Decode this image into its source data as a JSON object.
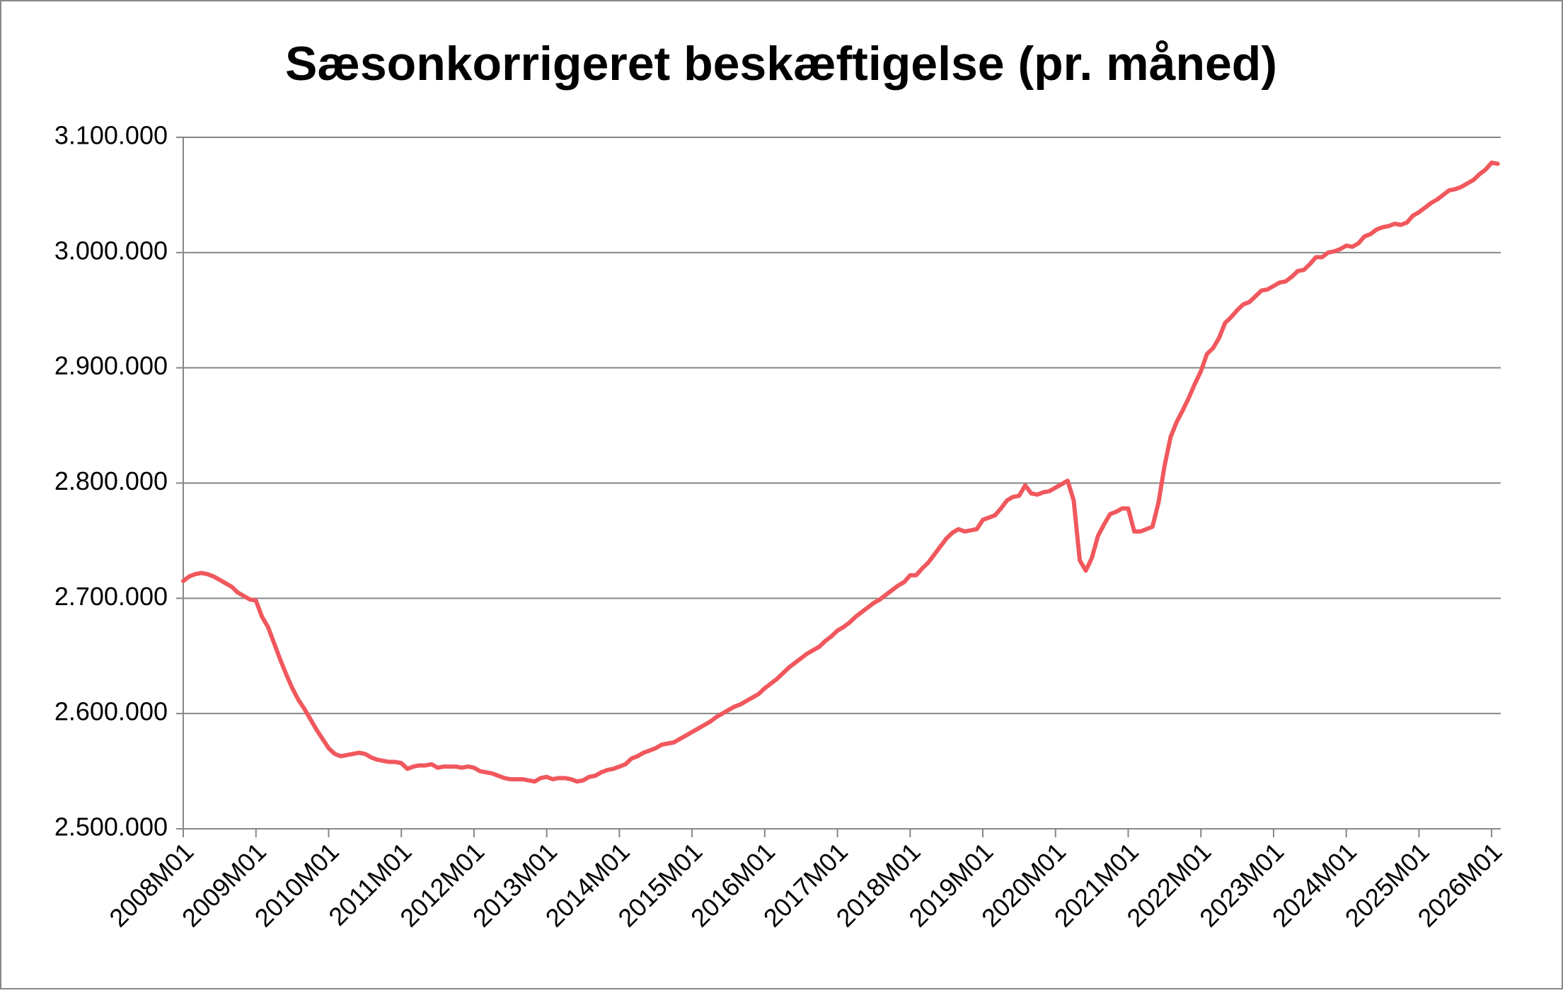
{
  "chart_data": {
    "type": "line",
    "title": "Sæsonkorrigeret beskæftigelse (pr. måned)",
    "categories": [
      "2008M01",
      null,
      null,
      null,
      null,
      null,
      null,
      null,
      null,
      null,
      null,
      null,
      "2009M01",
      null,
      null,
      null,
      null,
      null,
      null,
      null,
      null,
      null,
      null,
      null,
      "2010M01",
      null,
      null,
      null,
      null,
      null,
      null,
      null,
      null,
      null,
      null,
      null,
      "2011M01",
      null,
      null,
      null,
      null,
      null,
      null,
      null,
      null,
      null,
      null,
      null,
      "2012M01",
      null,
      null,
      null,
      null,
      null,
      null,
      null,
      null,
      null,
      null,
      null,
      "2013M01",
      null,
      null,
      null,
      null,
      null,
      null,
      null,
      null,
      null,
      null,
      null,
      "2014M01",
      null,
      null,
      null,
      null,
      null,
      null,
      null,
      null,
      null,
      null,
      null,
      "2015M01",
      null,
      null,
      null,
      null,
      null,
      null,
      null,
      null,
      null,
      null,
      null,
      "2016M01",
      null,
      null,
      null,
      null,
      null,
      null,
      null,
      null,
      null,
      null,
      null,
      "2017M01",
      null,
      null,
      null,
      null,
      null,
      null,
      null,
      null,
      null,
      null,
      null,
      "2018M01",
      null,
      null,
      null,
      null,
      null,
      null,
      null,
      null,
      null,
      null,
      null,
      "2019M01",
      null,
      null,
      null,
      null,
      null,
      null,
      null,
      null,
      null,
      null,
      null,
      "2020M01",
      null,
      null,
      null,
      null,
      null,
      null,
      null,
      null,
      null,
      null,
      null,
      "2021M01",
      null,
      null,
      null,
      null,
      null,
      null,
      null,
      null,
      null,
      null,
      null,
      "2022M01",
      null,
      null,
      null,
      null,
      null,
      null,
      null,
      null,
      null,
      null,
      null,
      "2023M01",
      null,
      null,
      null,
      null,
      null,
      null,
      null,
      null,
      null,
      null,
      null,
      "2024M01",
      null,
      null,
      null,
      null,
      null,
      null,
      null,
      null,
      null,
      null,
      null,
      "2025M01",
      null,
      null,
      null,
      null,
      null,
      null,
      null,
      null,
      null,
      null,
      null,
      "2026M01",
      null
    ],
    "values": [
      2715000,
      2719000,
      2721000,
      2722000,
      2721000,
      2719000,
      2716000,
      2713000,
      2710000,
      2705000,
      2702000,
      2699000,
      2698000,
      2684000,
      2675000,
      2661000,
      2647000,
      2634000,
      2622000,
      2612000,
      2604000,
      2595000,
      2586000,
      2578000,
      2570000,
      2565000,
      2563000,
      2564000,
      2565000,
      2566000,
      2565000,
      2562000,
      2560000,
      2559000,
      2558000,
      2558000,
      2557000,
      2552000,
      2554000,
      2555000,
      2555000,
      2556000,
      2553000,
      2554000,
      2554000,
      2554000,
      2553000,
      2554000,
      2553000,
      2550000,
      2549000,
      2548000,
      2546000,
      2544000,
      2543000,
      2543000,
      2543000,
      2542000,
      2541000,
      2544000,
      2545000,
      2543000,
      2544000,
      2544000,
      2543000,
      2541000,
      2542000,
      2545000,
      2546000,
      2549000,
      2551000,
      2552000,
      2554000,
      2556000,
      2561000,
      2563000,
      2566000,
      2568000,
      2570000,
      2573000,
      2574000,
      2575000,
      2578000,
      2581000,
      2584000,
      2587000,
      2590000,
      2593000,
      2597000,
      2600000,
      2603000,
      2606000,
      2608000,
      2611000,
      2614000,
      2617000,
      2622000,
      2626000,
      2630000,
      2635000,
      2640000,
      2644000,
      2648000,
      2652000,
      2655000,
      2658000,
      2663000,
      2667000,
      2672000,
      2675000,
      2679000,
      2684000,
      2688000,
      2692000,
      2696000,
      2699000,
      2703000,
      2707000,
      2711000,
      2714000,
      2720000,
      2720000,
      2726000,
      2731000,
      2738000,
      2745000,
      2752000,
      2757000,
      2760000,
      2758000,
      2759000,
      2760000,
      2768000,
      2770000,
      2772000,
      2778000,
      2785000,
      2788000,
      2789000,
      2798000,
      2791000,
      2790000,
      2792000,
      2793000,
      2796000,
      2799000,
      2802000,
      2785000,
      2733000,
      2724000,
      2735000,
      2754000,
      2764000,
      2773000,
      2775000,
      2778000,
      2778000,
      2758000,
      2758000,
      2760000,
      2762000,
      2783000,
      2815000,
      2840000,
      2853000,
      2863000,
      2874000,
      2886000,
      2897000,
      2912000,
      2917000,
      2926000,
      2939000,
      2944000,
      2950000,
      2955000,
      2957000,
      2962000,
      2967000,
      2968000,
      2971000,
      2974000,
      2975000,
      2979000,
      2984000,
      2985000,
      2990000,
      2996000,
      2996000,
      3000000,
      3001000,
      3003000,
      3006000,
      3005000,
      3008000,
      3014000,
      3016000,
      3020000,
      3022000,
      3023000,
      3025000,
      3024000,
      3026000,
      3032000,
      3035000,
      3039000,
      3043000,
      3046000,
      3050000,
      3054000,
      3055000,
      3057000,
      3060000,
      3063000,
      3068000,
      3072000,
      3078000,
      3077000
    ],
    "color": "#f0585d",
    "ylim": [
      2500000,
      3100000
    ],
    "yticks": [
      {
        "value": 2500000,
        "label": "2.500.000"
      },
      {
        "value": 2600000,
        "label": "2.600.000"
      },
      {
        "value": 2700000,
        "label": "2.700.000"
      },
      {
        "value": 2800000,
        "label": "2.800.000"
      },
      {
        "value": 2900000,
        "label": "2.900.000"
      },
      {
        "value": 3000000,
        "label": "3.000.000"
      },
      {
        "value": 3100000,
        "label": "3.100.000"
      }
    ],
    "grid": true
  }
}
